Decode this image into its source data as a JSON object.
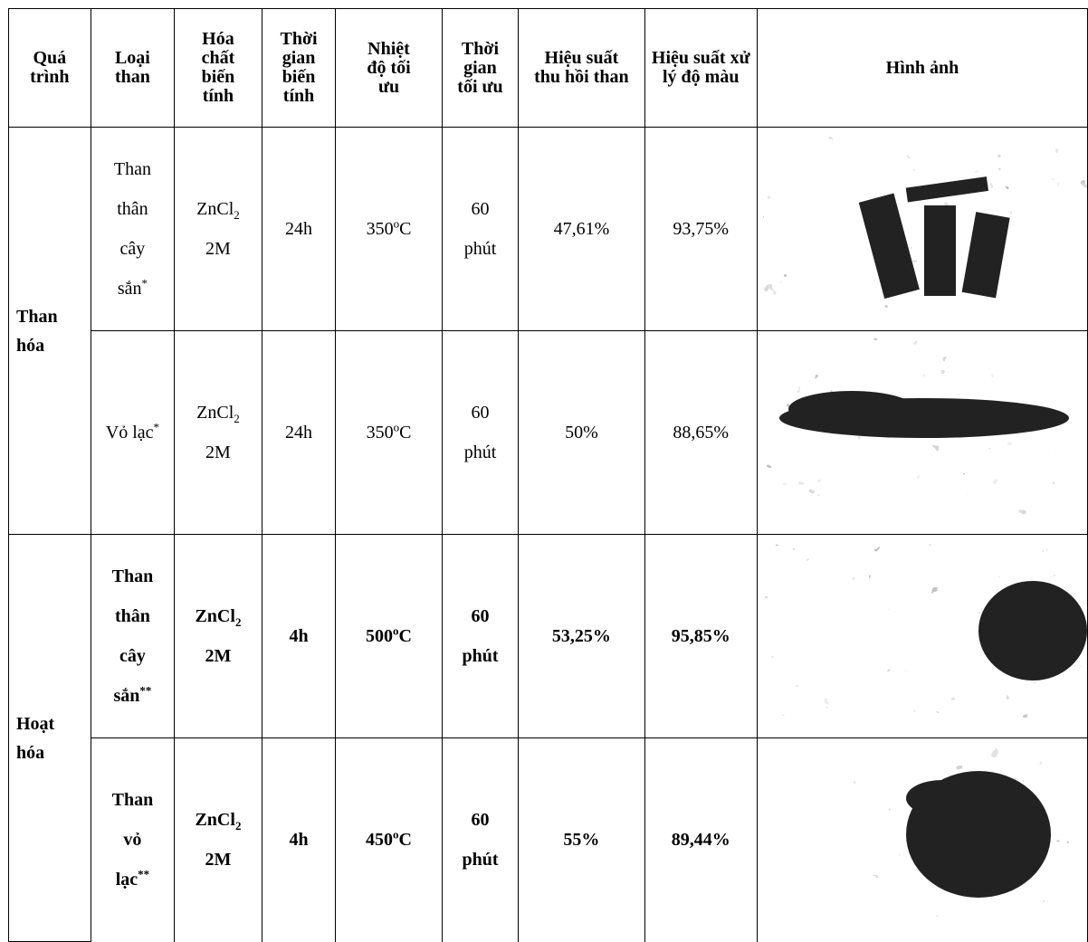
{
  "table": {
    "header": [
      "Quá trình",
      "Loại than",
      "Hóa chất biến tính",
      "Thời gian biến tính",
      "Nhiệt độ tối ưu",
      "Thời gian tối ưu",
      "Hiệu suất thu hồi than",
      "Hiệu suất xử lý độ màu",
      "Hình ảnh"
    ],
    "groups": [
      {
        "process": "Than hóa",
        "bold": false,
        "rows": [
          [
            [
              "Than thân cây sắn",
              {
                "sup": "*"
              }
            ],
            [
              "ZnCl",
              {
                "sub": "2"
              },
              " 2M"
            ],
            [
              "24h"
            ],
            [
              "350",
              {
                "sup": "o"
              },
              "C"
            ],
            [
              "60 phút"
            ],
            [
              "47,61%"
            ],
            [
              "93,75%"
            ]
          ],
          [
            [
              "Vỏ lạc",
              {
                "sup": "*"
              }
            ],
            [
              "ZnCl",
              {
                "sub": "2"
              },
              " 2M"
            ],
            [
              "24h"
            ],
            [
              "350",
              {
                "sup": "o"
              },
              "C"
            ],
            [
              "60 phút"
            ],
            [
              "50%"
            ],
            [
              "88,65%"
            ]
          ]
        ]
      },
      {
        "process": "Hoạt hóa",
        "bold": true,
        "rows": [
          [
            [
              "Than thân cây sắn",
              {
                "sup": "**"
              }
            ],
            [
              "ZnCl",
              {
                "sub": "2"
              },
              " 2M"
            ],
            [
              "4h"
            ],
            [
              "500",
              {
                "sup": "o"
              },
              "C"
            ],
            [
              "60 phút"
            ],
            [
              "53,25%"
            ],
            [
              "95,85%"
            ]
          ],
          [
            [
              "Than vỏ lạc",
              {
                "sup": "**"
              }
            ],
            [
              "ZnCl",
              {
                "sub": "2"
              },
              " 2M"
            ],
            [
              "4h"
            ],
            [
              "450",
              {
                "sup": "o"
              },
              "C"
            ],
            [
              "60 phút"
            ],
            [
              "55%"
            ],
            [
              "89,44%"
            ]
          ]
        ]
      }
    ]
  }
}
